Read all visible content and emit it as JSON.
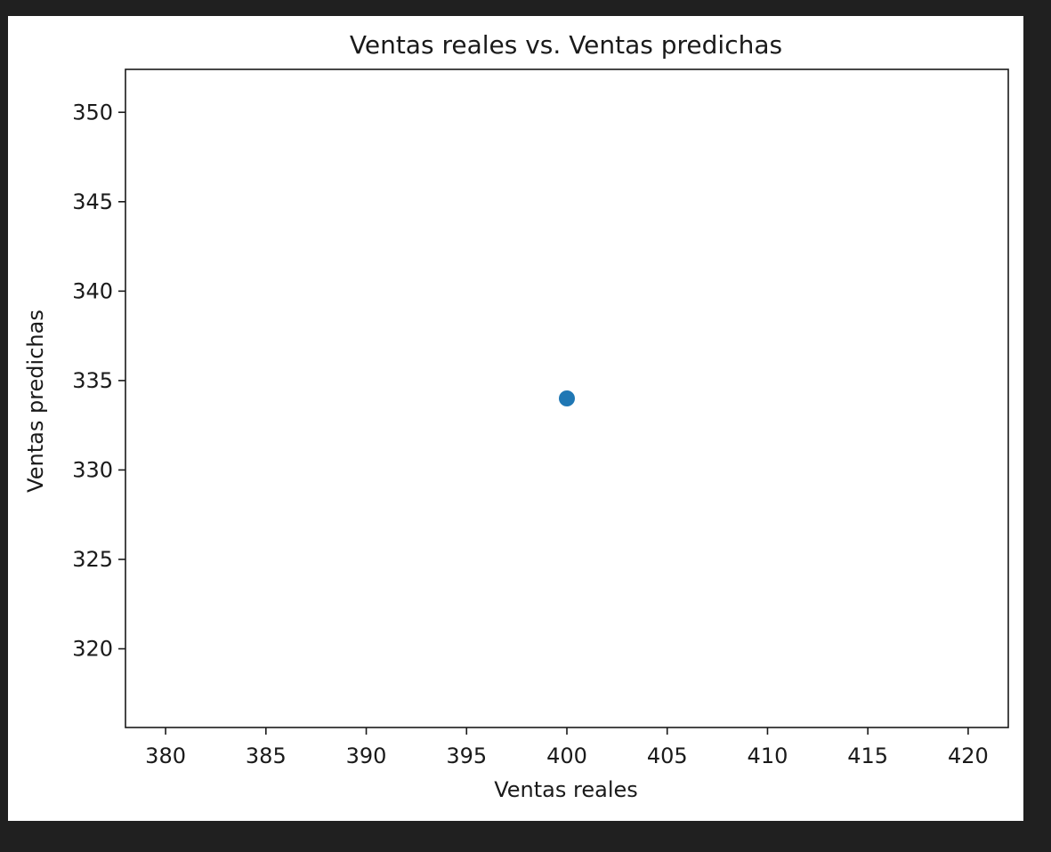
{
  "chart_data": {
    "type": "scatter",
    "title": "Ventas reales vs. Ventas predichas",
    "xlabel": "Ventas reales",
    "ylabel": "Ventas predichas",
    "xlim": [
      378.0,
      422.0
    ],
    "ylim": [
      315.6,
      352.4
    ],
    "x_ticks": [
      380,
      385,
      390,
      395,
      400,
      405,
      410,
      415,
      420
    ],
    "y_ticks": [
      320,
      325,
      330,
      335,
      340,
      345,
      350
    ],
    "grid": false,
    "series": [
      {
        "points": [
          {
            "x": 400,
            "y": 334
          }
        ]
      }
    ],
    "marker_color": "#1f77b4"
  }
}
